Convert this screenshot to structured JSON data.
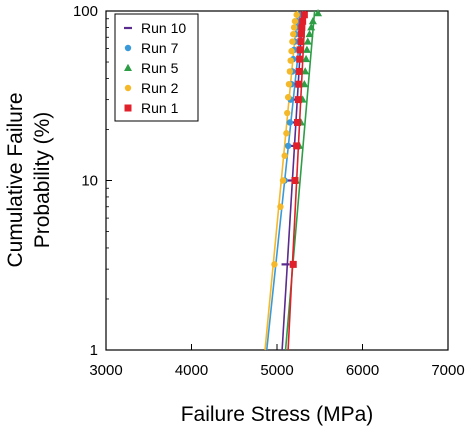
{
  "chart_data": {
    "type": "scatter",
    "xlabel": "Failure Stress (MPa)",
    "ylabel_line1": "Cumulative Failure",
    "ylabel_line2": "Probability (%)",
    "xlim": [
      3000,
      7000
    ],
    "ylim": [
      1,
      100
    ],
    "yscale": "log",
    "x_ticks": [
      "3000",
      "4000",
      "5000",
      "6000",
      "7000"
    ],
    "y_ticks": [
      "1",
      "10",
      "100"
    ],
    "grid": false,
    "legend": "top-left",
    "series": [
      {
        "name": "Run 10",
        "color": "#5a2c8e",
        "marker": "dash",
        "points": [
          [
            5100,
            3.2
          ],
          [
            5170,
            10
          ],
          [
            5200,
            16
          ],
          [
            5210,
            22
          ],
          [
            5220,
            30
          ],
          [
            5230,
            37
          ],
          [
            5240,
            44
          ],
          [
            5245,
            52
          ],
          [
            5250,
            59
          ],
          [
            5260,
            66
          ],
          [
            5265,
            73
          ],
          [
            5270,
            80
          ],
          [
            5280,
            87
          ],
          [
            5300,
            95
          ]
        ],
        "fit": [
          [
            5060,
            1
          ],
          [
            5300,
            100
          ]
        ]
      },
      {
        "name": "Run 7",
        "color": "#3a9ad9",
        "marker": "circle",
        "points": [
          [
            5090,
            10
          ],
          [
            5130,
            16
          ],
          [
            5150,
            22
          ],
          [
            5160,
            30
          ],
          [
            5170,
            37
          ],
          [
            5180,
            44
          ],
          [
            5190,
            52
          ],
          [
            5200,
            59
          ],
          [
            5210,
            66
          ],
          [
            5220,
            73
          ],
          [
            5230,
            80
          ],
          [
            5240,
            87
          ],
          [
            5260,
            95
          ]
        ],
        "fit": [
          [
            4880,
            1
          ],
          [
            5300,
            100
          ]
        ]
      },
      {
        "name": "Run 5",
        "color": "#2e9e46",
        "marker": "triangle",
        "points": [
          [
            5220,
            10
          ],
          [
            5260,
            16
          ],
          [
            5280,
            22
          ],
          [
            5300,
            30
          ],
          [
            5320,
            37
          ],
          [
            5330,
            44
          ],
          [
            5340,
            52
          ],
          [
            5350,
            59
          ],
          [
            5360,
            66
          ],
          [
            5380,
            73
          ],
          [
            5400,
            80
          ],
          [
            5420,
            87
          ],
          [
            5480,
            97
          ]
        ],
        "fit": [
          [
            5100,
            1
          ],
          [
            5440,
            100
          ]
        ]
      },
      {
        "name": "Run 2",
        "color": "#f5b829",
        "marker": "circle",
        "points": [
          [
            4970,
            3.2
          ],
          [
            5040,
            7
          ],
          [
            5070,
            10
          ],
          [
            5090,
            14
          ],
          [
            5110,
            19
          ],
          [
            5120,
            25
          ],
          [
            5130,
            31
          ],
          [
            5140,
            37
          ],
          [
            5150,
            44
          ],
          [
            5160,
            51
          ],
          [
            5170,
            58
          ],
          [
            5180,
            66
          ],
          [
            5190,
            73
          ],
          [
            5200,
            80
          ],
          [
            5210,
            87
          ],
          [
            5230,
            95
          ]
        ],
        "fit": [
          [
            4860,
            1
          ],
          [
            5240,
            100
          ]
        ]
      },
      {
        "name": "Run 1",
        "color": "#e0202a",
        "marker": "square",
        "points": [
          [
            5190,
            3.2
          ],
          [
            5210,
            10
          ],
          [
            5230,
            16
          ],
          [
            5240,
            22
          ],
          [
            5250,
            30
          ],
          [
            5255,
            37
          ],
          [
            5260,
            44
          ],
          [
            5265,
            52
          ],
          [
            5270,
            59
          ],
          [
            5280,
            66
          ],
          [
            5285,
            73
          ],
          [
            5290,
            80
          ],
          [
            5300,
            87
          ],
          [
            5320,
            95
          ]
        ],
        "fit": [
          [
            5130,
            1
          ],
          [
            5330,
            100
          ]
        ]
      }
    ]
  }
}
